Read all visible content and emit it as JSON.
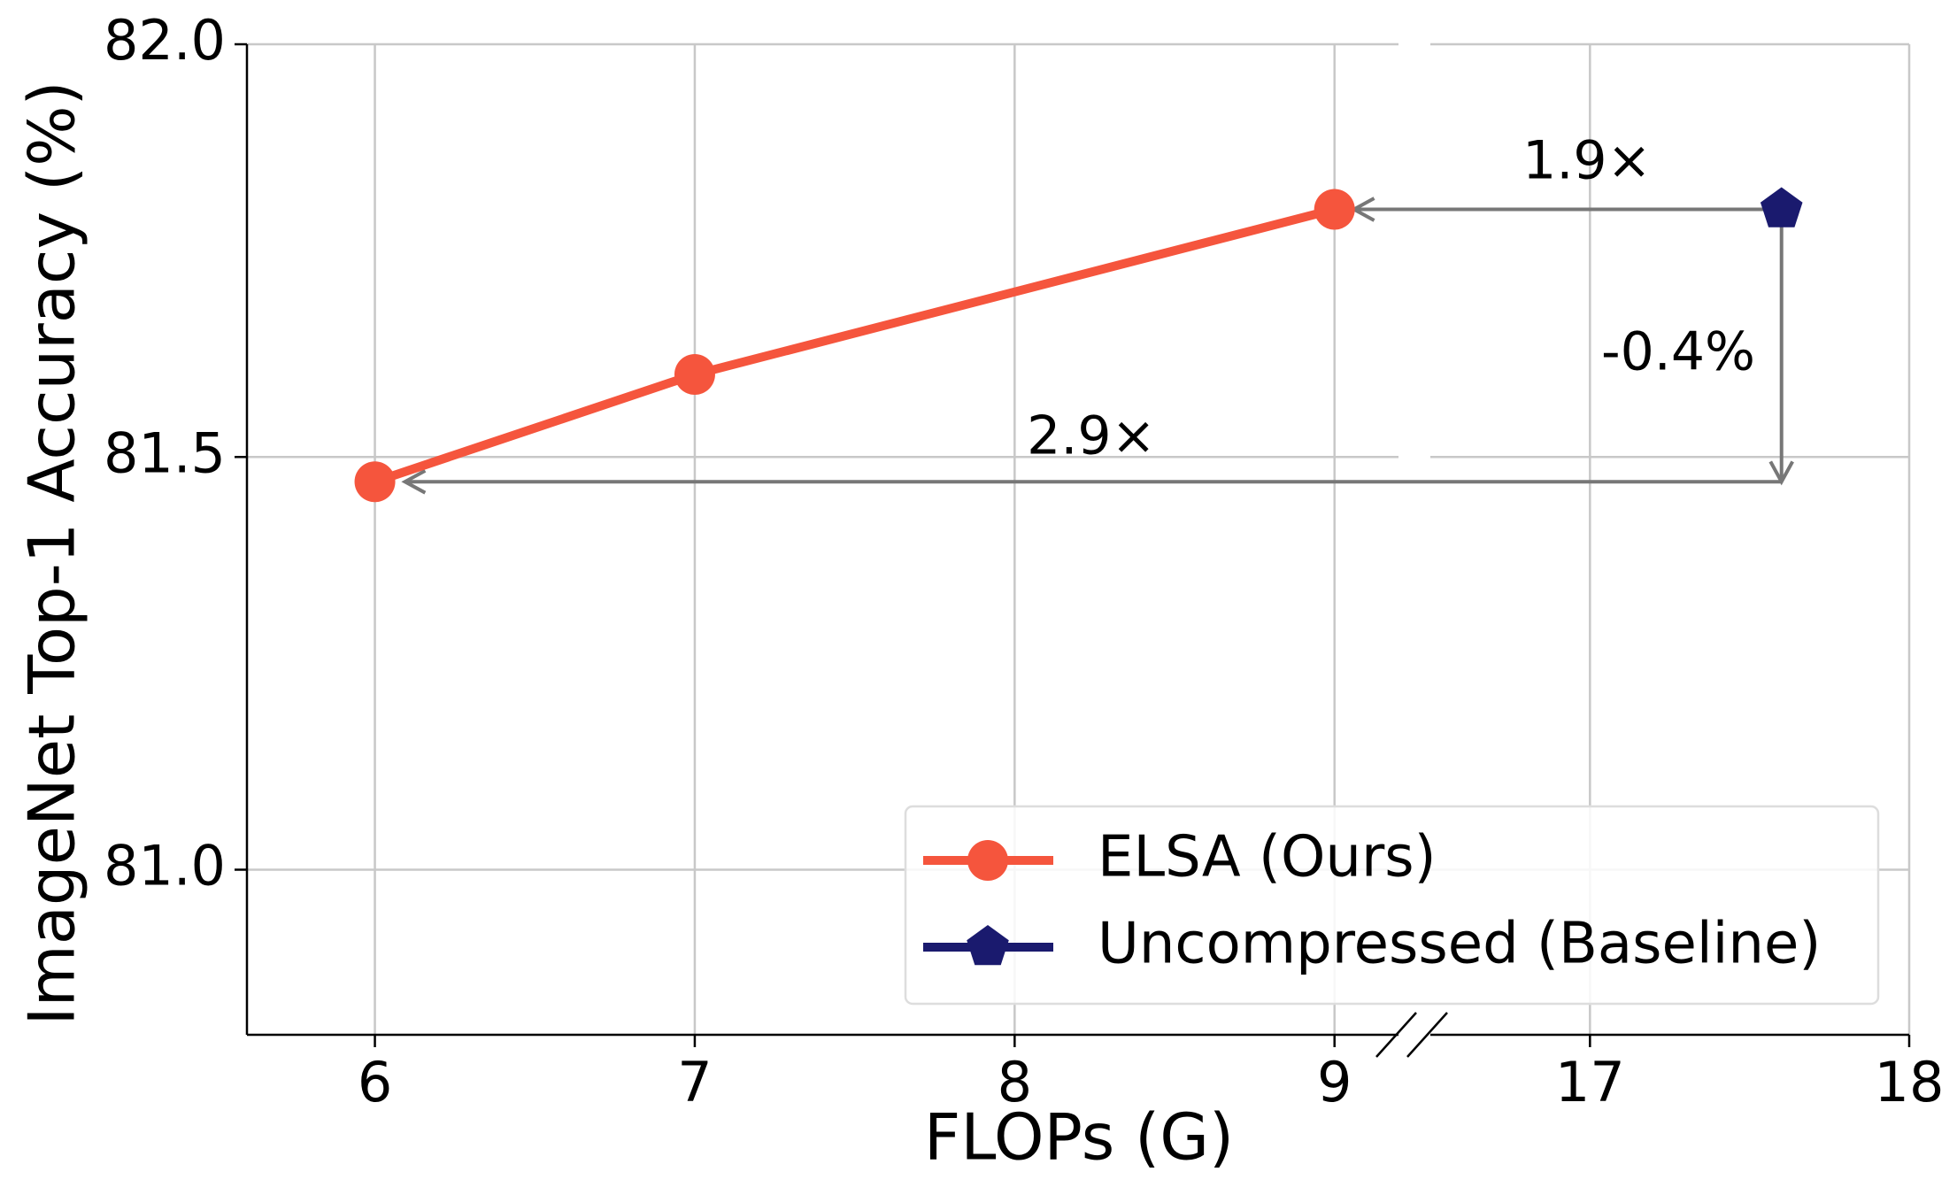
{
  "chart_data": {
    "type": "line",
    "xlabel": "FLOPs (G)",
    "ylabel": "ImageNet Top-1 Accuracy (%)",
    "x_segments": [
      {
        "xlim": [
          5.6,
          9.2
        ],
        "xticks": [
          6,
          7,
          8,
          9
        ]
      },
      {
        "xlim": [
          16.5,
          18
        ],
        "xticks": [
          17,
          18
        ]
      }
    ],
    "ylim": [
      80.8,
      82.0
    ],
    "yticks": [
      {
        "value": 81,
        "label": "81.0"
      },
      {
        "value": 81.5,
        "label": "81.5"
      },
      {
        "value": 82,
        "label": "82.0"
      }
    ],
    "grid": true,
    "legend": "lower right",
    "series": [
      {
        "name": "ELSA (Ours)",
        "color": "#f5553d",
        "marker": "circle",
        "x": [
          6,
          7,
          9
        ],
        "values": [
          81.47,
          81.6,
          81.8
        ]
      },
      {
        "name": "Uncompressed (Baseline)",
        "color": "#1a1a6e",
        "marker": "pentagon",
        "x": [
          17.6
        ],
        "values": [
          81.8
        ]
      }
    ],
    "annotations": [
      "1.9×",
      "-0.4%",
      "2.9×"
    ]
  }
}
